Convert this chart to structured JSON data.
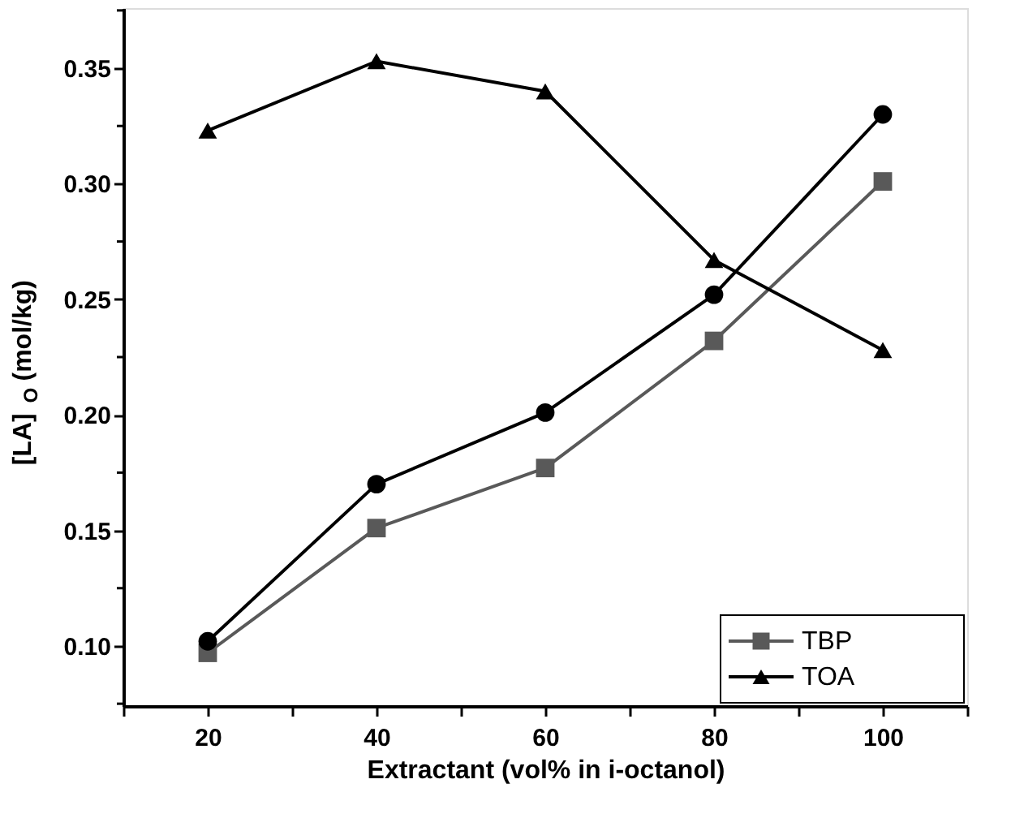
{
  "chart_data": {
    "type": "line",
    "xlabel": "Extractant (vol% in i-octanol)",
    "ylabel": "[LA]$_{O}$ (mol/kg)",
    "x": [
      20,
      40,
      60,
      80,
      100
    ],
    "xlim": [
      10,
      110
    ],
    "xticks": [
      {
        "value": 10,
        "label": null
      },
      20,
      {
        "value": 30,
        "label": null
      },
      40,
      {
        "value": 50,
        "label": null
      },
      60,
      {
        "value": 70,
        "label": null
      },
      80,
      {
        "value": 90,
        "label": null
      },
      100,
      {
        "value": 110,
        "label": null
      }
    ],
    "ylim": [
      0.074,
      0.376
    ],
    "yticks": [
      {
        "value": 0.075,
        "label": null
      },
      {
        "value": 0.1,
        "label": "0.10"
      },
      {
        "value": 0.125,
        "label": null
      },
      0.15,
      {
        "value": 0.175,
        "label": null
      },
      {
        "value": 0.2,
        "label": "0.20"
      },
      {
        "value": 0.225,
        "label": null
      },
      0.25,
      {
        "value": 0.275,
        "label": null
      },
      {
        "value": 0.3,
        "label": "0.30"
      },
      {
        "value": 0.325,
        "label": null
      },
      0.35,
      {
        "value": 0.375,
        "label": null
      }
    ],
    "grid": false,
    "legend": "bottom right",
    "line_style": "solid",
    "series": [
      {
        "name": "TBP",
        "color": "#595959",
        "marker": "square",
        "values": [
          0.097,
          0.151,
          0.177,
          0.232,
          0.301
        ]
      },
      {
        "color": "#000000",
        "marker": "circle",
        "values": [
          0.102,
          0.17,
          0.201,
          0.252,
          0.33
        ]
      },
      {
        "name": "TOA",
        "color": "#000000",
        "marker": "triangle",
        "values": [
          0.323,
          0.353,
          0.34,
          0.267,
          0.228
        ]
      }
    ]
  }
}
